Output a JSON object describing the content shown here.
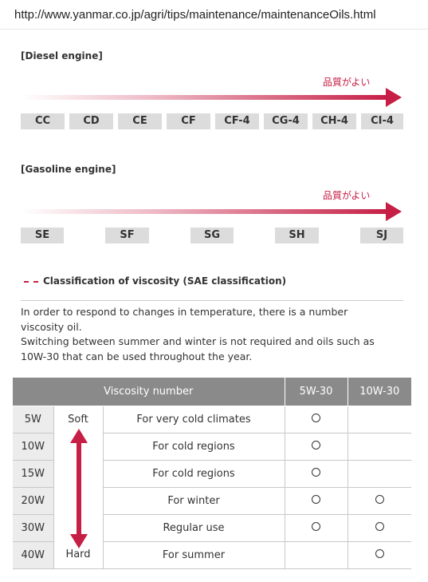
{
  "url": "http://www.yanmar.co.jp/agri/tips/maintenance/maintenanceOils.html",
  "diesel": {
    "title": "[Diesel engine]",
    "quality_label": "品質がよい",
    "grades": [
      "CC",
      "CD",
      "CE",
      "CF",
      "CF-4",
      "CG-4",
      "CH-4",
      "CI-4"
    ]
  },
  "gasoline": {
    "title": "[Gasoline engine]",
    "quality_label": "品質がよい",
    "grades": [
      "SE",
      "SF",
      "SG",
      "SH",
      "SJ"
    ]
  },
  "viscosity": {
    "heading": "Classification of viscosity (SAE classification)",
    "paragraph_lines": [
      "In order to respond to changes in temperature, there is a number",
      "viscosity oil.",
      "Switching between summer and winter is not required and oils such as",
      "10W-30 that can be used throughout the year."
    ]
  },
  "table": {
    "headers": {
      "viscosity_number": "Viscosity number",
      "col_5w30": "5W-30",
      "col_10w30": "10W-30"
    },
    "soft_label": "Soft",
    "hard_label": "Hard",
    "rows": [
      {
        "grade": "5W",
        "use": "For very cold climates",
        "w5_30": true,
        "w10_30": false
      },
      {
        "grade": "10W",
        "use": "For cold regions",
        "w5_30": true,
        "w10_30": false
      },
      {
        "grade": "15W",
        "use": "For cold regions",
        "w5_30": true,
        "w10_30": false
      },
      {
        "grade": "20W",
        "use": "For winter",
        "w5_30": true,
        "w10_30": true
      },
      {
        "grade": "30W",
        "use": "Regular use",
        "w5_30": true,
        "w10_30": true
      },
      {
        "grade": "40W",
        "use": "For summer",
        "w5_30": false,
        "w10_30": true
      }
    ]
  },
  "colors": {
    "accent": "#c61e45",
    "header_bg": "#8a8a8a",
    "grade_bg": "#dcdcdc"
  }
}
